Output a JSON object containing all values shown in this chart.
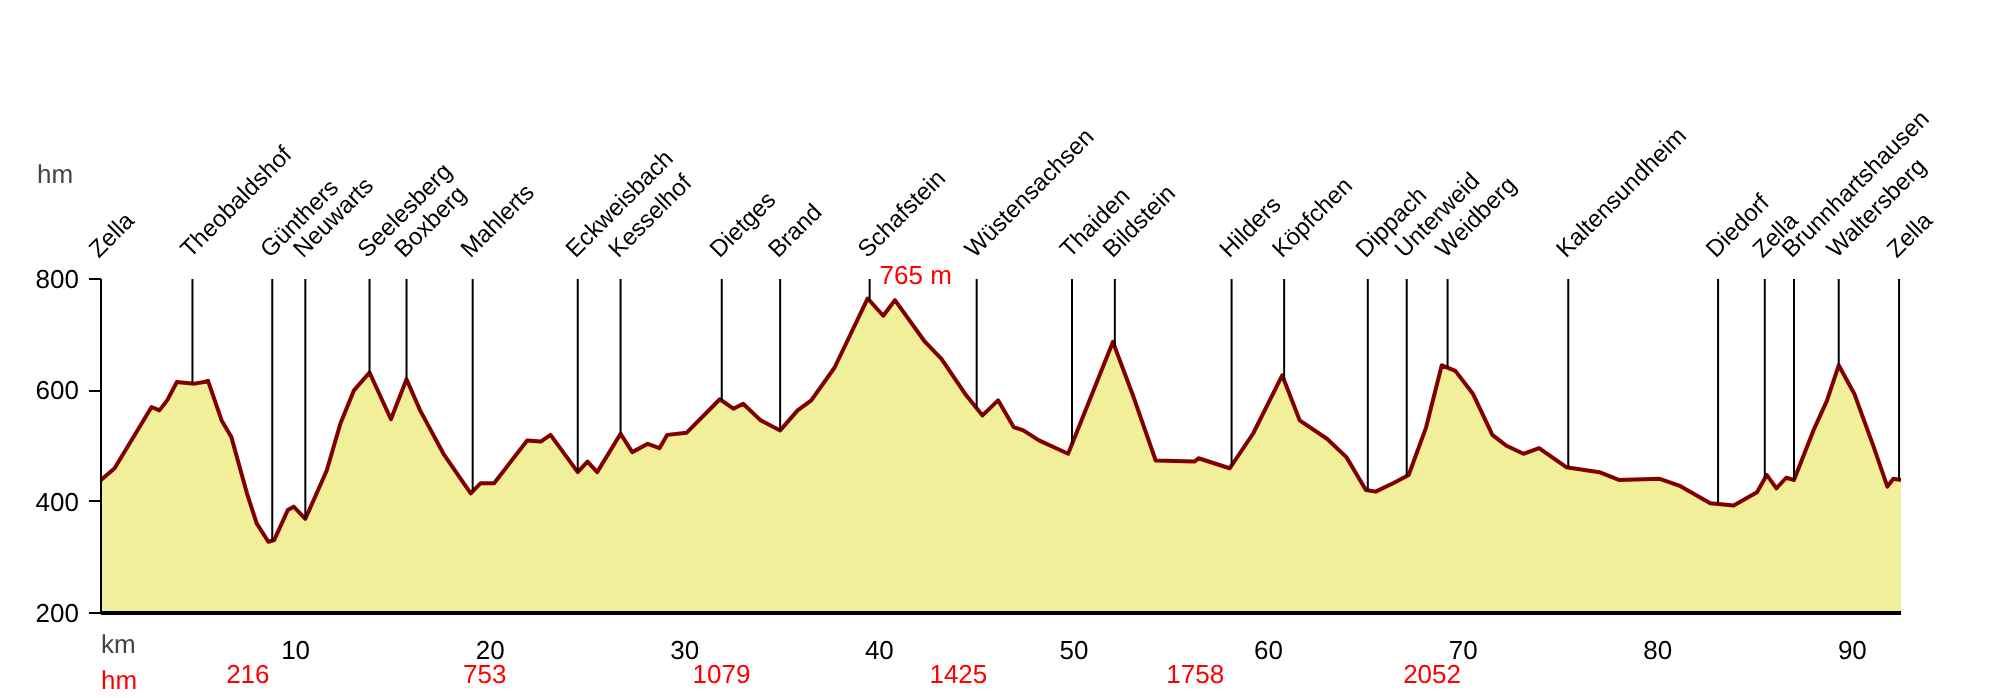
{
  "chart_data": {
    "type": "area",
    "ylabel": "hm",
    "xlabel": "km",
    "x": [
      0,
      0.7,
      2.6,
      3.0,
      3.4,
      3.9,
      4.8,
      5.3,
      5.5,
      6.2,
      6.7,
      7.5,
      8.0,
      8.6,
      8.9,
      9.6,
      9.9,
      10.5,
      11.6,
      12.3,
      13.0,
      13.8,
      14.9,
      15.7,
      16.4,
      17.6,
      19.0,
      19.5,
      20.2,
      21.9,
      22.6,
      23.1,
      24.5,
      25.0,
      25.5,
      26.7,
      27.3,
      28.1,
      28.7,
      29.1,
      30.1,
      31.8,
      32.5,
      33.0,
      33.9,
      34.9,
      35.8,
      36.5,
      37.7,
      39.4,
      40.2,
      40.8,
      42.3,
      43.2,
      44.4,
      45.3,
      46.1,
      46.9,
      47.4,
      48.2,
      49.7,
      52.0,
      53.0,
      54.2,
      56.2,
      56.4,
      58.0,
      59.2,
      60.7,
      61.6,
      63.0,
      64.0,
      65.0,
      65.5,
      66.4,
      67.2,
      68.1,
      68.9,
      69.6,
      70.5,
      71.5,
      72.2,
      73.1,
      73.9,
      75.3,
      77.0,
      78.0,
      80.1,
      81.1,
      82.7,
      83.9,
      85.1,
      85.6,
      86.1,
      86.6,
      87.0,
      88.0,
      88.7,
      89.3,
      90.1,
      91.1,
      91.8,
      92.1,
      92.5
    ],
    "series": [
      {
        "color": "#800000",
        "values": [
          439,
          460,
          570,
          564,
          582,
          615,
          612,
          615,
          617,
          546,
          516,
          415,
          361,
          328,
          331,
          385,
          391,
          369,
          456,
          540,
          600,
          632,
          548,
          620,
          564,
          486,
          415,
          433,
          433,
          510,
          508,
          520,
          453,
          472,
          453,
          522,
          489,
          504,
          496,
          520,
          524,
          584,
          567,
          576,
          546,
          528,
          564,
          582,
          641,
          765,
          734,
          762,
          689,
          656,
          594,
          555,
          582,
          534,
          528,
          510,
          486,
          687,
          594,
          474,
          472,
          478,
          460,
          522,
          627,
          546,
          513,
          480,
          421,
          418,
          433,
          448,
          534,
          645,
          635,
          594,
          520,
          501,
          486,
          496,
          462,
          453,
          439,
          441,
          429,
          397,
          393,
          417,
          448,
          424,
          443,
          439,
          528,
          582,
          645,
          594,
          498,
          427,
          441,
          439
        ]
      }
    ],
    "xlim": [
      0,
      92.5
    ],
    "xticks": [
      10,
      20,
      30,
      40,
      50,
      60,
      70,
      80,
      90
    ],
    "ylim": [
      200,
      800
    ],
    "yticks": [
      200,
      400,
      600,
      800
    ],
    "ref_lines": [
      {
        "axis": "x",
        "value": 0,
        "label": "Zella"
      },
      {
        "axis": "x",
        "value": 4.7,
        "label": "Theobaldshof"
      },
      {
        "axis": "x",
        "value": 8.8,
        "label": "Günthers"
      },
      {
        "axis": "x",
        "value": 10.5,
        "label": "Neuwarts"
      },
      {
        "axis": "x",
        "value": 13.8,
        "label": "Seelesberg"
      },
      {
        "axis": "x",
        "value": 15.7,
        "label": "Boxberg"
      },
      {
        "axis": "x",
        "value": 19.1,
        "label": "Mahlerts"
      },
      {
        "axis": "x",
        "value": 24.5,
        "label": "Eckweisbach"
      },
      {
        "axis": "x",
        "value": 26.7,
        "label": "Kesselhof"
      },
      {
        "axis": "x",
        "value": 31.9,
        "label": "Dietges"
      },
      {
        "axis": "x",
        "value": 34.9,
        "label": "Brand"
      },
      {
        "axis": "x",
        "value": 39.5,
        "label": "Schafstein"
      },
      {
        "axis": "x",
        "value": 45.0,
        "label": "Wüstensachsen"
      },
      {
        "axis": "x",
        "value": 49.9,
        "label": "Thaiden"
      },
      {
        "axis": "x",
        "value": 52.1,
        "label": "Bildstein"
      },
      {
        "axis": "x",
        "value": 58.1,
        "label": "Hilders"
      },
      {
        "axis": "x",
        "value": 60.8,
        "label": "Köpfchen"
      },
      {
        "axis": "x",
        "value": 65.1,
        "label": "Dippach"
      },
      {
        "axis": "x",
        "value": 67.1,
        "label": "Unterweid"
      },
      {
        "axis": "x",
        "value": 69.2,
        "label": "Weidberg"
      },
      {
        "axis": "x",
        "value": 75.4,
        "label": "Kaltensundheim"
      },
      {
        "axis": "x",
        "value": 83.1,
        "label": "Diedorf"
      },
      {
        "axis": "x",
        "value": 85.5,
        "label": "Zella"
      },
      {
        "axis": "x",
        "value": 87.0,
        "label": "Brunnhartshausen"
      },
      {
        "axis": "x",
        "value": 89.3,
        "label": "Waltersberg"
      },
      {
        "axis": "x",
        "value": 92.4,
        "label": "Zella"
      }
    ],
    "annotations": [
      {
        "text": "765 m",
        "x": 39.7,
        "y": 765
      },
      "hm",
      "216",
      "753",
      "1079",
      "1425",
      "1758",
      "2052"
    ],
    "grid": false
  }
}
